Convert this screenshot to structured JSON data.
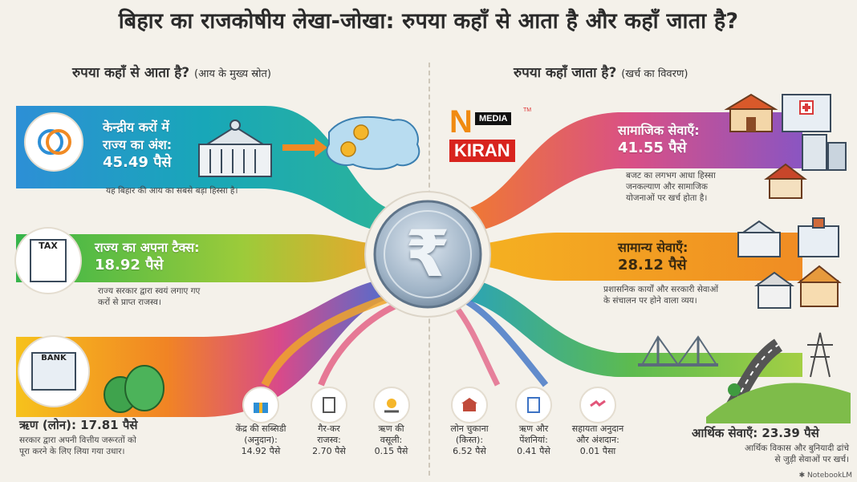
{
  "title": "बिहार का राजकोषीय लेखा-जोखा: रुपया कहाँ से आता है और कहाँ जाता है?",
  "left_header": {
    "main": "रुपया कहाँ से आता है?",
    "sub": "(आय के मुख्य स्रोत)"
  },
  "right_header": {
    "main": "रुपया कहाँ जाता है?",
    "sub": "(खर्च का विवरण)"
  },
  "logo": {
    "letter": "N",
    "media": "MEDIA",
    "tm": "TM",
    "name": "KIRAN"
  },
  "center_symbol": "₹",
  "income": {
    "central_taxes": {
      "label_line1": "केन्द्रीय करों में",
      "label_line2": "राज्य का अंश:",
      "value": "45.49 पैसे",
      "desc": "यह बिहार की आय का सबसे बड़ा हिस्सा है।"
    },
    "own_tax": {
      "label": "राज्य का अपना टैक्स:",
      "value": "18.92 पैसे",
      "desc_line1": "राज्य सरकार द्वारा स्वयं लगाए गए",
      "desc_line2": "करों से प्राप्त राजस्व।",
      "tax_tag": "TAX"
    },
    "loan": {
      "label": "ऋण (लोन): 17.81 पैसे",
      "desc_line1": "सरकार द्वारा अपनी वित्तीय जरूरतों को",
      "desc_line2": "पूरा करने के लिए लिया गया उधार।",
      "bank_tag": "BANK"
    },
    "small_items": [
      {
        "line1": "केंद्र की सब्सिडी",
        "line2": "(अनुदान):",
        "value": "14.92 पैसे",
        "icon": "gift-icon"
      },
      {
        "line1": "गैर-कर",
        "line2": "राजस्व:",
        "value": "2.70 पैसे",
        "icon": "receipt-icon"
      },
      {
        "line1": "ऋण की",
        "line2": "वसूली:",
        "value": "0.15 पैसे",
        "icon": "hand-coin-icon"
      }
    ]
  },
  "expense": {
    "social": {
      "label": "सामाजिक सेवाएँ:",
      "value": "41.55 पैसे",
      "desc_line1": "बजट का लगभग आधा हिस्सा",
      "desc_line2": "जनकल्याण और सामाजिक",
      "desc_line3": "योजनाओं पर खर्च होता है।"
    },
    "general": {
      "label": "सामान्य सेवाएँ:",
      "value": "28.12 पैसे",
      "desc_line1": "प्रशासनिक कार्यों और सरकारी सेवाओं",
      "desc_line2": "के संचालन पर होने वाला व्यय।"
    },
    "economic": {
      "label": "आर्थिक सेवाएँ: 23.39 पैसे",
      "desc_line1": "आर्थिक विकास और बुनियादी ढांचे",
      "desc_line2": "से जुड़ी सेवाओं पर खर्च।"
    },
    "small_items": [
      {
        "line1": "लोन चुकाना",
        "line2": "(किस्त):",
        "value": "6.52 पैसे",
        "icon": "bank-icon"
      },
      {
        "line1": "ऋण और",
        "line2": "पेंशनियां:",
        "value": "0.41 पैसे",
        "icon": "document-icon"
      },
      {
        "line1": "सहायता अनुदान",
        "line2": "और अंशदान:",
        "value": "0.01 पैसा",
        "icon": "handshake-icon"
      }
    ]
  },
  "footer": "NotebookLM",
  "colors": {
    "teal": "#1f9fb5",
    "green": "#6fb944",
    "orange": "#f08a24",
    "purple": "#8e5bb5",
    "pink": "#e2567a",
    "blue": "#3c72c4"
  }
}
